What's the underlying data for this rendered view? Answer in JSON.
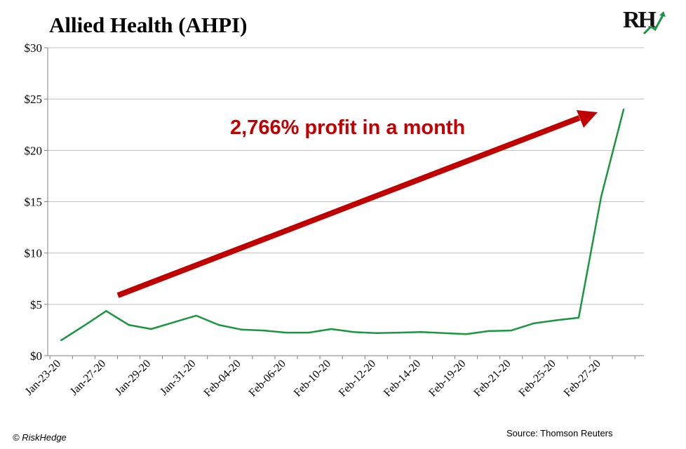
{
  "logo": {
    "text": "RH"
  },
  "annotation": {
    "text": "2,766% profit in a month"
  },
  "footer": {
    "copyright": "© RiskHedge",
    "source": "Source: Thomson Reuters"
  },
  "colors": {
    "line": "#1a9641",
    "arrow": "#c00000",
    "axis": "#7f7f7f",
    "grid": "#bfbfbf"
  },
  "chart_data": {
    "type": "line",
    "title": "Allied Health (AHPI)",
    "xlabel": "",
    "ylabel": "",
    "ylim": [
      0,
      30
    ],
    "yticks": [
      "$0",
      "$5",
      "$10",
      "$15",
      "$20",
      "$25",
      "$30"
    ],
    "grid": true,
    "xtick_labels": [
      "Jan-23-20",
      "Jan-27-20",
      "Jan-29-20",
      "Jan-31-20",
      "Feb-04-20",
      "Feb-06-20",
      "Feb-10-20",
      "Feb-12-20",
      "Feb-14-20",
      "Feb-19-20",
      "Feb-21-20",
      "Feb-25-20",
      "Feb-27-20"
    ],
    "x": [
      "Jan-23-20",
      "Jan-24-20",
      "Jan-27-20",
      "Jan-28-20",
      "Jan-29-20",
      "Jan-30-20",
      "Jan-31-20",
      "Feb-03-20",
      "Feb-04-20",
      "Feb-05-20",
      "Feb-06-20",
      "Feb-07-20",
      "Feb-10-20",
      "Feb-11-20",
      "Feb-12-20",
      "Feb-13-20",
      "Feb-14-20",
      "Feb-18-20",
      "Feb-19-20",
      "Feb-20-20",
      "Feb-21-20",
      "Feb-24-20",
      "Feb-25-20",
      "Feb-26-20",
      "Feb-27-20",
      "Feb-28-20"
    ],
    "series": [
      {
        "values": [
          1.5,
          2.9,
          4.35,
          3.0,
          2.6,
          3.25,
          3.9,
          3.0,
          2.55,
          2.45,
          2.25,
          2.25,
          2.6,
          2.3,
          2.2,
          2.25,
          2.3,
          2.2,
          2.1,
          2.4,
          2.45,
          3.15,
          3.45,
          3.7,
          15.5,
          24.0
        ]
      }
    ]
  }
}
